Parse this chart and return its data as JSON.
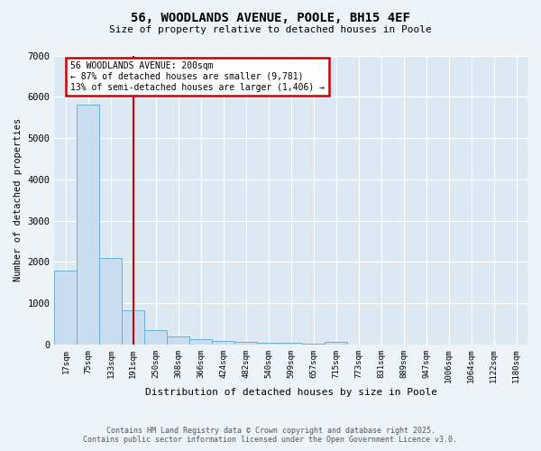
{
  "title1": "56, WOODLANDS AVENUE, POOLE, BH15 4EF",
  "title2": "Size of property relative to detached houses in Poole",
  "xlabel": "Distribution of detached houses by size in Poole",
  "ylabel": "Number of detached properties",
  "categories": [
    "17sqm",
    "75sqm",
    "133sqm",
    "191sqm",
    "250sqm",
    "308sqm",
    "366sqm",
    "424sqm",
    "482sqm",
    "540sqm",
    "599sqm",
    "657sqm",
    "715sqm",
    "773sqm",
    "831sqm",
    "889sqm",
    "947sqm",
    "1006sqm",
    "1064sqm",
    "1122sqm",
    "1180sqm"
  ],
  "values": [
    1800,
    5820,
    2100,
    820,
    340,
    200,
    130,
    90,
    65,
    50,
    40,
    30,
    55,
    10,
    5,
    4,
    3,
    2,
    1,
    1,
    1
  ],
  "bar_color": "#c8ddf0",
  "bar_edge_color": "#6aaed6",
  "vline_x_index": 3,
  "vline_color": "#cc0000",
  "annotation_text": "56 WOODLANDS AVENUE: 200sqm\n← 87% of detached houses are smaller (9,781)\n13% of semi-detached houses are larger (1,406) →",
  "annotation_box_color": "#cc0000",
  "ylim": [
    0,
    7000
  ],
  "yticks": [
    0,
    1000,
    2000,
    3000,
    4000,
    5000,
    6000,
    7000
  ],
  "footer1": "Contains HM Land Registry data © Crown copyright and database right 2025.",
  "footer2": "Contains public sector information licensed under the Open Government Licence v3.0.",
  "bg_color": "#eef3f8",
  "plot_bg_color": "#dce8f2",
  "grid_color": "#ffffff"
}
